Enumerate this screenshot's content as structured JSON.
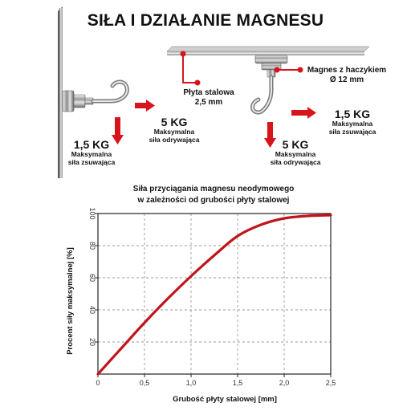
{
  "title": "SIŁA I DZIAŁANIE MAGNESU",
  "diagram": {
    "left": {
      "pull_value": "5 KG",
      "pull_desc_1": "Maksymalna",
      "pull_desc_2": "siła odrywająca",
      "shear_value": "1,5 KG",
      "shear_desc_1": "Maksymalna",
      "shear_desc_2": "siła zsuwająca"
    },
    "plate_label_1": "Płyta stalowa",
    "plate_label_2": "2,5 mm",
    "magnet_label_1": "Magnes z haczykiem",
    "magnet_label_2": "Ø 12 mm",
    "right": {
      "shear_value": "1,5 KG",
      "shear_desc_1": "Maksymalna",
      "shear_desc_2": "siła zsuwająca",
      "pull_value": "5 KG",
      "pull_desc_1": "Maksymalna",
      "pull_desc_2": "siła odrywająca"
    },
    "accent_color": "#d7141b"
  },
  "chart_title_1": "Siła przyciągania magnesu neodymowego",
  "chart_title_2": "w zależności od grubości płyty stalowej",
  "chart_data": {
    "type": "line",
    "xlabel": "Grubość płyty stalowej [mm]",
    "ylabel": "Procent siły maksymalnej [%]",
    "xlim": [
      0,
      2.5
    ],
    "ylim": [
      0,
      100
    ],
    "x_ticks": [
      "0",
      "0,5",
      "1,0",
      "1,5",
      "2,0",
      "2,5"
    ],
    "y_ticks": [
      "20",
      "40",
      "60",
      "80",
      "100"
    ],
    "grid": true,
    "series": [
      {
        "color": "#c0151b",
        "x": [
          0,
          0.25,
          0.5,
          0.75,
          1.0,
          1.25,
          1.5,
          1.75,
          2.0,
          2.25,
          2.5
        ],
        "y": [
          0,
          16,
          32,
          47,
          61,
          74,
          86,
          93,
          97,
          98.5,
          99
        ]
      }
    ]
  }
}
